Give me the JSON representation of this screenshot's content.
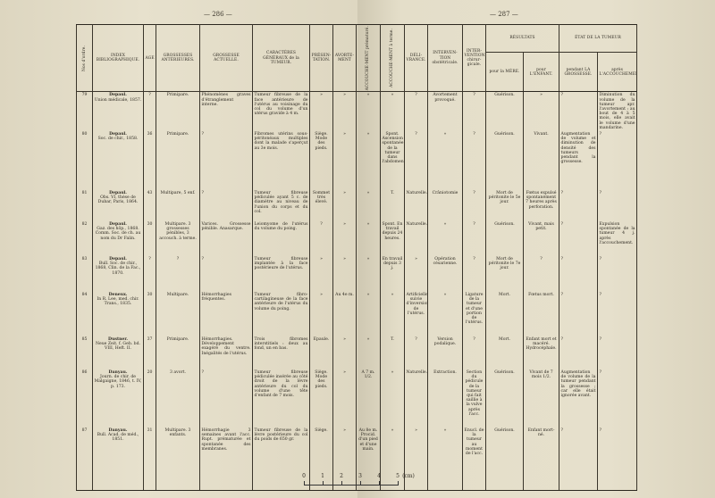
{
  "left_page_number": "— 286 —",
  "right_page_number": "— 287 —",
  "headers": {
    "number": "Nos d'ordre.",
    "index": "INDEX BIBLIOGRAPHIQUE.",
    "age": "AGE",
    "previous_pregnancies": "GROSSESSES ANTÉRIEURES.",
    "current_pregnancy": "GROSSESSE ACTUELLE.",
    "tumor": "CARACTÈRES GÉNÉRAUX de la TUMEUR.",
    "presentation": "PRÉSEN-TATION.",
    "abortion": "AVORTE-MENT",
    "premature_delivery": "ACCOUCHE-MENT prématuré.",
    "term_delivery": "ACCOUCHE-MENT à terme.",
    "afterbirth": "DÉLI-VRANCE.",
    "obstetric_intervention": "INTERVEN-TION obstétricale.",
    "surgical_intervention": "INTER-VENTION chirur-gicale.",
    "results": "RÉSULTATS",
    "results_mother": "pour la MÈRE.",
    "results_child": "pour L'ENFANT.",
    "tumor_state": "ÉTAT DE LA TUMEUR",
    "tumor_during": "pendant LA GROSSESSE.",
    "tumor_after": "après L'ACCOUCHEMENT."
  },
  "rows": [
    {
      "no": "79",
      "author": "Depaul.",
      "ref": "Union médicale, 1857.",
      "cells": [
        "?",
        "Primipare.",
        "Phénomènes graves d'étranglement interne.",
        "Tumeur fibreuse de la face antérieure de l'utérus au voisinage du col du volume d'un utérus gravide à 4 m.",
        "»",
        "»",
        "»",
        "»",
        "?",
        "Avortement provoqué.",
        "?",
        "Guérison.",
        "»",
        "?",
        "Diminution du volume de la tumeur apr. l'avortement : au bout de 4 à 5 mois, elle avait le volume d'une mandarine."
      ]
    },
    {
      "no": "80",
      "author": "Depaul.",
      "ref": "Soc. de chir., 1858.",
      "cells": [
        "36",
        "Primipare.",
        "?",
        "Fibromes utérins sous-péritonéaux multiples dont la malade s'aperçut au 3e mois.",
        "Siège. Mode des pieds.",
        "»",
        "»",
        "Spont. Ascension spontanée de la tumeur dans l'abdomen.",
        "?",
        "»",
        "?",
        "Guérison.",
        "Vivant.",
        "Augmentation de volume et diminution de densité des tumeurs pendant la grossesse.",
        "?"
      ]
    },
    {
      "no": "81",
      "author": "Depaul.",
      "ref": "Obs. VI, thèse de Dubar, Paris, 1864.",
      "cells": [
        "43",
        "Multipare, 5 enf.",
        "?",
        "Tumeur fibreuse pédiculée ayant 5 c. de diamètre au niveau de l'union du corps et du col.",
        "Sommet très élevé.",
        "»",
        "»",
        "T.",
        "Naturelle.",
        "Crâniotomie",
        "?",
        "Mort de péritonite le 5e jour.",
        "Fœtus expulsé spontanément 7 heures après perforation.",
        "?",
        "?"
      ]
    },
    {
      "no": "82",
      "author": "Depaul.",
      "ref": "Gaz. des hôp., 1868. Comm. Soc. de ch. au nom du Dr Falin.",
      "cells": [
        "30",
        "Multipare. 3 grossesses pénibles, 3 accouch. à terme.",
        "Varices. Grossesse pénible. Anasarque.",
        "Leiomyome de l'utérus du volume du poing.",
        "?",
        "»",
        "»",
        "Spont. En travail depuis 24 heures.",
        "Naturelle.",
        "»",
        "?",
        "Guérison.",
        "Vivant, mais petit.",
        "?",
        "Expulsion spontanée de la tumeur 4 j. après l'accouchement."
      ]
    },
    {
      "no": "83",
      "author": "Depaul.",
      "ref": "Bull. Soc. de chir., 1868, Clin. de la Fac., 1870.",
      "cells": [
        "?",
        "?",
        "?",
        "Tumeur fibreuse implantée à la face postérieure de l'utérus.",
        "»",
        "»",
        "»",
        "En travail depuis 3 j.",
        "»",
        "Opération césarienne.",
        "?",
        "Mort de péritonite le 7e jour.",
        "?",
        "?",
        "?"
      ]
    },
    {
      "no": "84",
      "author": "Deneux.",
      "ref": "In R. Lee, med. chir. Trans., 1835.",
      "cells": [
        "30",
        "Multipare.",
        "Hémorrhagies fréquentes.",
        "Tumeur fibro-cartilagineuse de la face antérieure de l'utérus du volume du poing.",
        "»",
        "Au 4e m.",
        "»",
        "»",
        "Artificielle suivie d'inversion de l'utérus.",
        "»",
        "Ligature de la tumeur et d'une portion de l'utérus.",
        "Mort.",
        "Fœtus mort.",
        "?",
        "?"
      ]
    },
    {
      "no": "85",
      "author": "Dustner.",
      "ref": "Neue Zeit. f. Geb. bd. VIII, Heft. II.",
      "cells": [
        "37",
        "Primipare.",
        "Hémorrhagies. Développement exagéré du ventre. Inégalités de l'utérus.",
        "Trois fibromes interstitiels : deux au fond, un en bas.",
        "Epaule.",
        "»",
        "»",
        "T.",
        "?",
        "Version podalique.",
        "?",
        "Mort.",
        "Enfant mort et macéré. Hydrocéphale.",
        "?",
        "?"
      ]
    },
    {
      "no": "86",
      "author": "Danyau.",
      "ref": "Journ. de chir. de Malgaigne, 1846, t. IV, p. 173.",
      "cells": [
        "20",
        "3 avort.",
        "?",
        "Tumeur fibreuse pédiculée insérée au côté droit de la lèvre antérieure du col du volume d'une tête d'enfant de 7 mois.",
        "Siège. Mode des pieds.",
        "»",
        "A 7 m. 1/2.",
        "»",
        "Naturelle.",
        "Extraction.",
        "Section du pédicule de la tumeur qui fait saillie à la vulve après l'acc.",
        "Guérison.",
        "Vivant de 7 mois 1/2.",
        "Augmentation de volume de la tumeur pendant la grossesse ; car elle était ignorée avant.",
        "?"
      ]
    },
    {
      "no": "87",
      "author": "Danyau.",
      "ref": "Bull. Acad. de méd., 1851.",
      "cells": [
        "31",
        "Multipare. 3 enfants.",
        "Hémorrhagie 3 semaines avant l'acc. Rupt. prématurée et spontanée des membranes.",
        "Tumeur fibreuse de la lèvre postérieure du col du poids de 650 gr.",
        "Siège.",
        "»",
        "Au 8e m. Procid. d'un pied et d'une main.",
        "»",
        "»",
        "»",
        "Enucl. de la tumeur au moment de l'acc.",
        "Guérison.",
        "Enfant mort-né.",
        "?",
        "?"
      ]
    }
  ],
  "scale_bar": {
    "ticks": [
      "0",
      "1",
      "2",
      "3",
      "4",
      "5"
    ],
    "unit": "(cm)"
  }
}
